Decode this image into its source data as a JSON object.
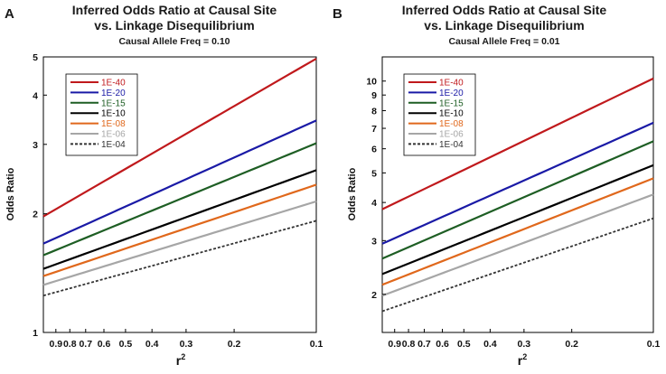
{
  "chart_data": [
    {
      "panel": "A",
      "type": "line",
      "title": "Inferred Odds Ratio at Causal Site",
      "title_line2": "vs. Linkage Disequilibrium",
      "subtitle": "Causal Allele Freq = 0.10",
      "xlabel": "r",
      "xlabel_sup": "2",
      "ylabel": "Odds Ratio",
      "xscale": "log",
      "xlim": [
        1.0,
        0.1
      ],
      "yscale": "log",
      "ylim": [
        1,
        5
      ],
      "xticks": [
        0.9,
        0.8,
        0.7,
        0.6,
        0.5,
        0.4,
        0.3,
        0.2,
        0.1
      ],
      "xtick_labels": [
        "0.9",
        "0.8",
        "0.7",
        "0.6",
        "0.5",
        "0.4",
        "0.3",
        "0.2",
        "0.1"
      ],
      "yticks": [
        1,
        2,
        3,
        4,
        5
      ],
      "ytick_labels": [
        "1",
        "2",
        "3",
        "4",
        "5"
      ],
      "grid": false,
      "legend_position": "top-left",
      "x": [
        1.0,
        0.1
      ],
      "series": [
        {
          "name": "1E-40",
          "color": "#c0191c",
          "dash": "",
          "values": [
            1.97,
            4.95
          ]
        },
        {
          "name": "1E-20",
          "color": "#1a1aa6",
          "dash": "",
          "values": [
            1.68,
            3.45
          ]
        },
        {
          "name": "1E-15",
          "color": "#1e5e24",
          "dash": "",
          "values": [
            1.57,
            3.02
          ]
        },
        {
          "name": "1E-10",
          "color": "#000000",
          "dash": "",
          "values": [
            1.45,
            2.58
          ]
        },
        {
          "name": "1E-08",
          "color": "#e0681c",
          "dash": "",
          "values": [
            1.39,
            2.37
          ]
        },
        {
          "name": "1E-06",
          "color": "#a6a6a6",
          "dash": "",
          "values": [
            1.32,
            2.15
          ]
        },
        {
          "name": "1E-04",
          "color": "#333333",
          "dash": "3,2",
          "values": [
            1.24,
            1.92
          ]
        }
      ]
    },
    {
      "panel": "B",
      "type": "line",
      "title": "Inferred Odds Ratio at Causal Site",
      "title_line2": "vs. Linkage Disequilibrium",
      "subtitle": "Causal Allele Freq = 0.01",
      "xlabel": "r",
      "xlabel_sup": "2",
      "ylabel": "Odds Ratio",
      "xscale": "log",
      "xlim": [
        1.0,
        0.1
      ],
      "yscale": "log",
      "ylim": [
        1.5,
        12
      ],
      "xticks": [
        0.9,
        0.8,
        0.7,
        0.6,
        0.5,
        0.4,
        0.3,
        0.2,
        0.1
      ],
      "xtick_labels": [
        "0.9",
        "0.8",
        "0.7",
        "0.6",
        "0.5",
        "0.4",
        "0.3",
        "0.2",
        "0.1"
      ],
      "yticks": [
        2,
        3,
        4,
        5,
        6,
        7,
        8,
        9,
        10
      ],
      "ytick_labels": [
        "2",
        "3",
        "4",
        "5",
        "6",
        "7",
        "8",
        "9",
        "10"
      ],
      "grid": false,
      "legend_position": "top-left",
      "x": [
        1.0,
        0.1
      ],
      "series": [
        {
          "name": "1E-40",
          "color": "#c0191c",
          "dash": "",
          "values": [
            3.8,
            10.2
          ]
        },
        {
          "name": "1E-20",
          "color": "#1a1aa6",
          "dash": "",
          "values": [
            2.93,
            7.3
          ]
        },
        {
          "name": "1E-15",
          "color": "#1e5e24",
          "dash": "",
          "values": [
            2.62,
            6.35
          ]
        },
        {
          "name": "1E-10",
          "color": "#000000",
          "dash": "",
          "values": [
            2.33,
            5.3
          ]
        },
        {
          "name": "1E-08",
          "color": "#e0681c",
          "dash": "",
          "values": [
            2.15,
            4.8
          ]
        },
        {
          "name": "1E-06",
          "color": "#a6a6a6",
          "dash": "",
          "values": [
            1.98,
            4.25
          ]
        },
        {
          "name": "1E-04",
          "color": "#333333",
          "dash": "3,2",
          "values": [
            1.76,
            3.55
          ]
        }
      ]
    }
  ]
}
